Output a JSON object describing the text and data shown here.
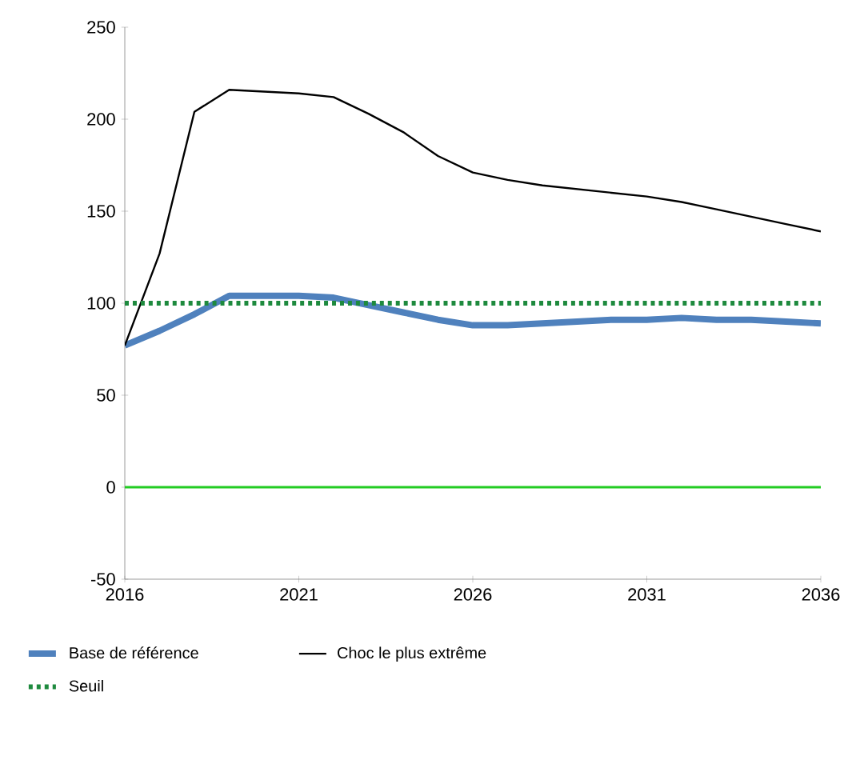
{
  "chart_data": {
    "type": "line",
    "x": [
      2016,
      2017,
      2018,
      2019,
      2020,
      2021,
      2022,
      2023,
      2024,
      2025,
      2026,
      2027,
      2028,
      2029,
      2030,
      2031,
      2032,
      2033,
      2034,
      2035,
      2036
    ],
    "series": [
      {
        "name": "Base de référence",
        "color": "#4f81bd",
        "values": [
          77,
          85,
          94,
          104,
          104,
          104,
          103,
          99,
          95,
          91,
          88,
          88,
          89,
          90,
          91,
          91,
          92,
          91,
          91,
          90,
          89
        ]
      },
      {
        "name": "Choc le plus extrême",
        "color": "#000000",
        "values": [
          77,
          127,
          204,
          216,
          215,
          214,
          212,
          203,
          193,
          180,
          171,
          167,
          164,
          162,
          160,
          158,
          155,
          151,
          147,
          143,
          139
        ]
      },
      {
        "name": "Seuil",
        "color": "#1e8a3e",
        "line_style": "dotted",
        "values": [
          100,
          100,
          100,
          100,
          100,
          100,
          100,
          100,
          100,
          100,
          100,
          100,
          100,
          100,
          100,
          100,
          100,
          100,
          100,
          100,
          100
        ]
      }
    ],
    "xlim": [
      2016,
      2036
    ],
    "xticks": [
      2016,
      2021,
      2026,
      2031,
      2036
    ],
    "ylim": [
      -50,
      250
    ],
    "yticks": [
      -50,
      0,
      50,
      100,
      150,
      200,
      250
    ],
    "ref_lines": [
      {
        "axis": "y",
        "value": 0,
        "color": "#22cc22"
      }
    ],
    "grid": false,
    "legend": "bottom",
    "marker": "none"
  }
}
